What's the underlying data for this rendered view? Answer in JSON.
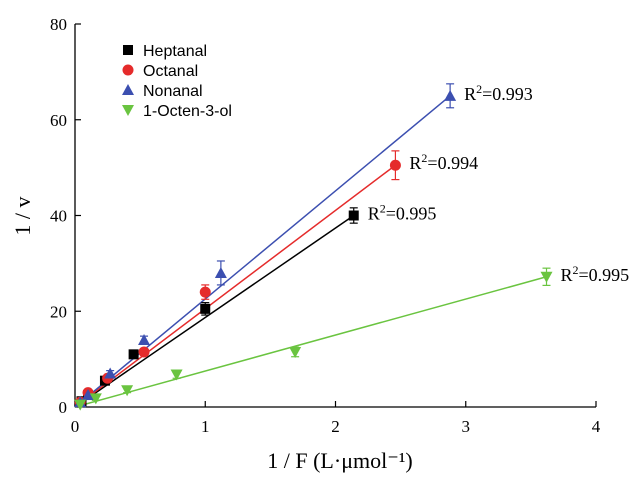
{
  "chart_data": {
    "type": "scatter",
    "xlabel": "1 / F (L·μmol⁻¹)",
    "ylabel": "1 / v",
    "xlim": [
      0,
      4
    ],
    "ylim": [
      0,
      80
    ],
    "x_ticks": [
      0,
      1,
      2,
      3,
      4
    ],
    "y_ticks": [
      0,
      20,
      40,
      60,
      80
    ],
    "grid": false,
    "legend_position": "top-left",
    "series": [
      {
        "name": "Heptanal",
        "marker": "square",
        "color": "#000000",
        "points": [
          {
            "x": 0.05,
            "y": 1.2,
            "err": 0.5
          },
          {
            "x": 0.1,
            "y": 2.5,
            "err": 0.5
          },
          {
            "x": 0.23,
            "y": 5.5,
            "err": 0.6
          },
          {
            "x": 0.45,
            "y": 11,
            "err": 0.6
          },
          {
            "x": 1.0,
            "y": 20.5,
            "err": 1.3
          },
          {
            "x": 2.14,
            "y": 40,
            "err": 1.6
          }
        ],
        "fit": {
          "x": [
            0,
            2.14
          ],
          "y": [
            0,
            40
          ]
        },
        "r2": "0.995"
      },
      {
        "name": "Octanal",
        "marker": "circle",
        "color": "#e52b2b",
        "points": [
          {
            "x": 0.04,
            "y": 1.0,
            "err": 0.4
          },
          {
            "x": 0.1,
            "y": 3.0,
            "err": 0.5
          },
          {
            "x": 0.25,
            "y": 6.0,
            "err": 0.6
          },
          {
            "x": 0.53,
            "y": 11.5,
            "err": 0.7
          },
          {
            "x": 1.0,
            "y": 24,
            "err": 1.5
          },
          {
            "x": 2.46,
            "y": 50.5,
            "err": 3.0
          }
        ],
        "fit": {
          "x": [
            0,
            2.46
          ],
          "y": [
            0,
            50.5
          ]
        },
        "r2": "0.994"
      },
      {
        "name": "Nonanal",
        "marker": "triangle-up",
        "color": "#3c4fb0",
        "points": [
          {
            "x": 0.04,
            "y": 1.0,
            "err": 0.4
          },
          {
            "x": 0.1,
            "y": 2.5,
            "err": 0.5
          },
          {
            "x": 0.27,
            "y": 7.0,
            "err": 0.6
          },
          {
            "x": 0.53,
            "y": 14,
            "err": 0.8
          },
          {
            "x": 1.12,
            "y": 28,
            "err": 2.5
          },
          {
            "x": 2.88,
            "y": 65,
            "err": 2.5
          }
        ],
        "fit": {
          "x": [
            0,
            2.88
          ],
          "y": [
            0,
            65
          ]
        },
        "r2": "0.993"
      },
      {
        "name": "1-Octen-3-ol",
        "marker": "triangle-down",
        "color": "#6ac440",
        "points": [
          {
            "x": 0.04,
            "y": 0.5,
            "err": 0.3
          },
          {
            "x": 0.16,
            "y": 1.8,
            "err": 0.4
          },
          {
            "x": 0.4,
            "y": 3.5,
            "err": 0.5
          },
          {
            "x": 0.78,
            "y": 6.8,
            "err": 0.8
          },
          {
            "x": 1.69,
            "y": 11.5,
            "err": 1.0
          },
          {
            "x": 3.62,
            "y": 27.2,
            "err": 1.8
          }
        ],
        "fit": {
          "x": [
            0,
            3.62
          ],
          "y": [
            0,
            27.2
          ]
        },
        "r2": "0.995"
      }
    ]
  }
}
